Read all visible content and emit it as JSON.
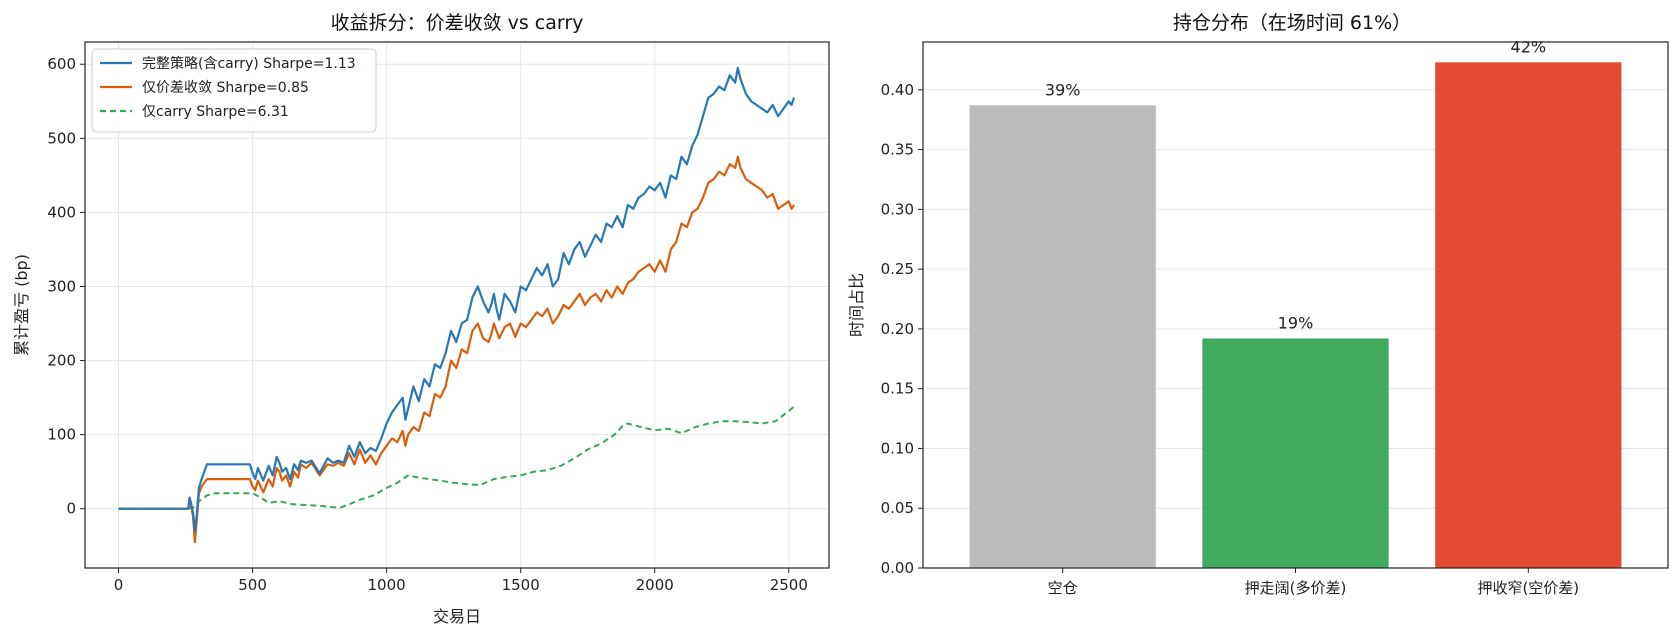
{
  "chart_data": [
    {
      "type": "line",
      "title": "收益拆分：价差收敛 vs carry",
      "xlabel": "交易日",
      "ylabel": "累计盈亏 (bp)",
      "xlim": [
        -125,
        2650
      ],
      "ylim": [
        -80,
        630
      ],
      "xticks": [
        0,
        500,
        1000,
        1500,
        2000,
        2500
      ],
      "yticks": [
        0,
        100,
        200,
        300,
        400,
        500,
        600
      ],
      "grid": true,
      "legend": "top-left",
      "series": [
        {
          "name": "完整策略(含carry) Sharpe=1.13",
          "color": "#2878b5",
          "style": "solid",
          "x": [
            0,
            260,
            265,
            270,
            278,
            285,
            292,
            300,
            310,
            330,
            350,
            400,
            450,
            490,
            500,
            510,
            520,
            540,
            560,
            575,
            590,
            600,
            610,
            625,
            640,
            655,
            670,
            680,
            700,
            720,
            750,
            780,
            800,
            820,
            840,
            860,
            880,
            900,
            920,
            940,
            960,
            980,
            1000,
            1020,
            1040,
            1060,
            1070,
            1080,
            1100,
            1120,
            1140,
            1160,
            1180,
            1200,
            1220,
            1240,
            1260,
            1280,
            1300,
            1320,
            1340,
            1360,
            1380,
            1390,
            1400,
            1410,
            1420,
            1440,
            1460,
            1480,
            1500,
            1520,
            1540,
            1560,
            1580,
            1600,
            1620,
            1640,
            1660,
            1680,
            1700,
            1720,
            1740,
            1760,
            1780,
            1800,
            1820,
            1840,
            1860,
            1880,
            1900,
            1920,
            1940,
            1960,
            1980,
            2000,
            2020,
            2040,
            2060,
            2080,
            2100,
            2120,
            2140,
            2160,
            2180,
            2200,
            2220,
            2240,
            2260,
            2280,
            2300,
            2310,
            2320,
            2340,
            2360,
            2380,
            2400,
            2420,
            2440,
            2460,
            2480,
            2500,
            2510,
            2520
          ],
          "y": [
            0,
            0,
            15,
            8,
            -5,
            -30,
            -8,
            28,
            40,
            60,
            60,
            60,
            60,
            60,
            48,
            40,
            55,
            38,
            58,
            45,
            70,
            62,
            50,
            55,
            40,
            60,
            52,
            65,
            62,
            65,
            48,
            68,
            62,
            65,
            62,
            85,
            70,
            90,
            75,
            82,
            78,
            95,
            115,
            130,
            140,
            150,
            120,
            135,
            165,
            145,
            175,
            165,
            195,
            190,
            210,
            240,
            225,
            250,
            255,
            285,
            300,
            280,
            265,
            275,
            290,
            270,
            255,
            290,
            280,
            265,
            300,
            295,
            310,
            325,
            315,
            330,
            300,
            310,
            345,
            330,
            350,
            360,
            340,
            355,
            370,
            360,
            385,
            380,
            395,
            380,
            410,
            405,
            420,
            425,
            435,
            430,
            440,
            420,
            450,
            445,
            475,
            465,
            490,
            505,
            530,
            555,
            560,
            570,
            565,
            585,
            575,
            595,
            580,
            560,
            550,
            545,
            540,
            535,
            545,
            530,
            540,
            550,
            545,
            555
          ],
          "final": 555
        },
        {
          "name": "仅价差收敛 Sharpe=0.85",
          "color": "#d95f0e",
          "style": "solid",
          "x": [
            0,
            260,
            265,
            270,
            278,
            285,
            292,
            300,
            310,
            330,
            350,
            400,
            450,
            490,
            500,
            510,
            520,
            540,
            560,
            575,
            590,
            600,
            610,
            625,
            640,
            655,
            670,
            680,
            700,
            720,
            750,
            780,
            800,
            820,
            840,
            860,
            880,
            900,
            920,
            940,
            960,
            980,
            1000,
            1020,
            1040,
            1060,
            1070,
            1080,
            1100,
            1120,
            1140,
            1160,
            1180,
            1200,
            1220,
            1240,
            1260,
            1280,
            1300,
            1320,
            1340,
            1360,
            1380,
            1390,
            1400,
            1410,
            1420,
            1440,
            1460,
            1480,
            1500,
            1520,
            1540,
            1560,
            1580,
            1600,
            1620,
            1640,
            1660,
            1680,
            1700,
            1720,
            1740,
            1760,
            1780,
            1800,
            1820,
            1840,
            1860,
            1880,
            1900,
            1920,
            1940,
            1960,
            1980,
            2000,
            2020,
            2040,
            2060,
            2080,
            2100,
            2120,
            2140,
            2160,
            2180,
            2200,
            2220,
            2240,
            2260,
            2280,
            2300,
            2310,
            2320,
            2340,
            2360,
            2380,
            2400,
            2420,
            2440,
            2460,
            2480,
            2500,
            2510,
            2520
          ],
          "y": [
            0,
            0,
            12,
            5,
            -10,
            -45,
            -15,
            20,
            30,
            40,
            40,
            40,
            40,
            40,
            30,
            25,
            38,
            22,
            40,
            30,
            55,
            50,
            38,
            45,
            30,
            50,
            42,
            60,
            55,
            62,
            45,
            60,
            58,
            62,
            58,
            75,
            60,
            80,
            62,
            72,
            60,
            75,
            85,
            95,
            90,
            105,
            85,
            100,
            110,
            105,
            130,
            125,
            155,
            150,
            165,
            200,
            190,
            215,
            210,
            240,
            250,
            230,
            225,
            235,
            250,
            240,
            230,
            245,
            250,
            232,
            250,
            245,
            255,
            265,
            260,
            270,
            250,
            260,
            275,
            270,
            280,
            290,
            275,
            285,
            290,
            280,
            295,
            285,
            300,
            290,
            305,
            310,
            320,
            325,
            330,
            320,
            335,
            320,
            350,
            360,
            385,
            380,
            400,
            405,
            420,
            440,
            445,
            455,
            450,
            465,
            460,
            475,
            460,
            445,
            440,
            435,
            430,
            420,
            425,
            405,
            410,
            415,
            405,
            410
          ],
          "final": 410
        },
        {
          "name": "仅carry Sharpe=6.31",
          "color": "#3aa657",
          "style": "dashed",
          "x": [
            0,
            260,
            280,
            300,
            330,
            360,
            400,
            450,
            500,
            530,
            560,
            600,
            650,
            700,
            750,
            800,
            830,
            860,
            900,
            950,
            1000,
            1040,
            1080,
            1120,
            1160,
            1200,
            1250,
            1300,
            1350,
            1400,
            1450,
            1500,
            1550,
            1600,
            1650,
            1700,
            1750,
            1800,
            1850,
            1880,
            1900,
            1950,
            2000,
            2050,
            2100,
            2150,
            2200,
            2250,
            2300,
            2350,
            2400,
            2450,
            2500,
            2520
          ],
          "y": [
            0,
            0,
            2,
            10,
            18,
            21,
            21,
            21,
            21,
            15,
            8,
            10,
            6,
            5,
            4,
            2,
            2,
            6,
            12,
            18,
            28,
            35,
            45,
            42,
            40,
            38,
            35,
            33,
            32,
            40,
            43,
            45,
            50,
            52,
            58,
            68,
            80,
            88,
            100,
            112,
            115,
            110,
            106,
            108,
            102,
            110,
            115,
            118,
            118,
            117,
            115,
            118,
            132,
            138
          ],
          "final": 138
        }
      ]
    },
    {
      "type": "bar",
      "title": "持仓分布（在场时间 61%）",
      "xlabel": "",
      "ylabel": "时间占比",
      "ylim": [
        0,
        0.44
      ],
      "yticks": [
        0.0,
        0.05,
        0.1,
        0.15,
        0.2,
        0.25,
        0.3,
        0.35,
        0.4
      ],
      "ytick_labels": [
        "0.00",
        "0.05",
        "0.10",
        "0.15",
        "0.20",
        "0.25",
        "0.30",
        "0.35",
        "0.40"
      ],
      "grid": true,
      "categories": [
        "空仓",
        "押走阔(多价差)",
        "押收窄(空价差)"
      ],
      "values": [
        0.387,
        0.192,
        0.423
      ],
      "data_labels": [
        "39%",
        "19%",
        "42%"
      ],
      "colors": [
        "#bbbbbb",
        "#41ab5d",
        "#e34a33"
      ]
    }
  ]
}
